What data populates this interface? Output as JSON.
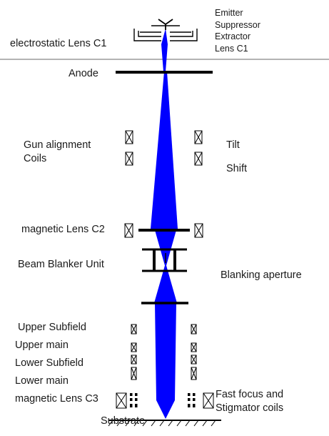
{
  "colors": {
    "beam": "#0000ff",
    "element": "#000000",
    "divider": "#9a9a9a",
    "text": "#1a1a1a"
  },
  "labels": {
    "emitter": "Emitter",
    "suppressor": "Suppressor",
    "extractor": "Extractor",
    "lens_c1_right": "Lens C1",
    "electrostatic_lens_c1": "electrostatic Lens C1",
    "anode": "Anode",
    "gun_alignment": "Gun alignment",
    "coils": "Coils",
    "tilt": "Tilt",
    "shift": "Shift",
    "magnetic_lens_c2": "magnetic Lens C2",
    "beam_blanker_unit": "Beam Blanker Unit",
    "blanking_aperture": "Blanking aperture",
    "upper_subfield": "Upper Subfield",
    "upper_main": "Upper  main",
    "lower_subfield": "Lower Subfield",
    "lower_main": "Lower main",
    "magnetic_lens_c3": "magnetic Lens C3",
    "fast_focus": "Fast focus and",
    "stigmator_coils": "Stigmator coils",
    "substrate": "Substrate"
  },
  "icons": {
    "coil": "crossed-box-icon",
    "lens-winding": "dotted-coil-icon"
  }
}
